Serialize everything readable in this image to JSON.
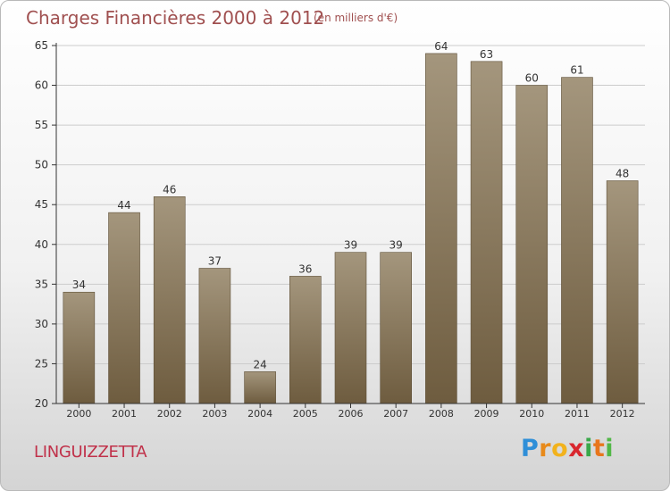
{
  "header": {
    "title": "Charges Financières 2000 à 2012",
    "subtitle": "(en milliers d'€)"
  },
  "footer": {
    "commune": "LINGUIZZETTA",
    "logo_letters": [
      "P",
      "r",
      "o",
      "x",
      "i",
      "t",
      "i"
    ],
    "logo_colors": [
      "#2f8fd8",
      "#e88a1a",
      "#f2b21c",
      "#d9262e",
      "#3aa84a",
      "#e8761c",
      "#52b848"
    ]
  },
  "colors": {
    "bar_top": "#a4967d",
    "bar_bottom": "#6e5c3f",
    "axis": "#333333",
    "grid": "#cccccc",
    "title": "#a05050"
  },
  "chart_data": {
    "type": "bar",
    "title": "Charges Financières 2000 à 2012",
    "subtitle": "(en milliers d'€)",
    "categories": [
      "2000",
      "2001",
      "2002",
      "2003",
      "2004",
      "2005",
      "2006",
      "2007",
      "2008",
      "2009",
      "2010",
      "2011",
      "2012"
    ],
    "values": [
      34,
      44,
      46,
      37,
      24,
      36,
      39,
      39,
      64,
      63,
      60,
      61,
      48
    ],
    "ylim": [
      20,
      65
    ],
    "yticks": [
      20,
      25,
      30,
      35,
      40,
      45,
      50,
      55,
      60,
      65
    ],
    "grid": true
  }
}
